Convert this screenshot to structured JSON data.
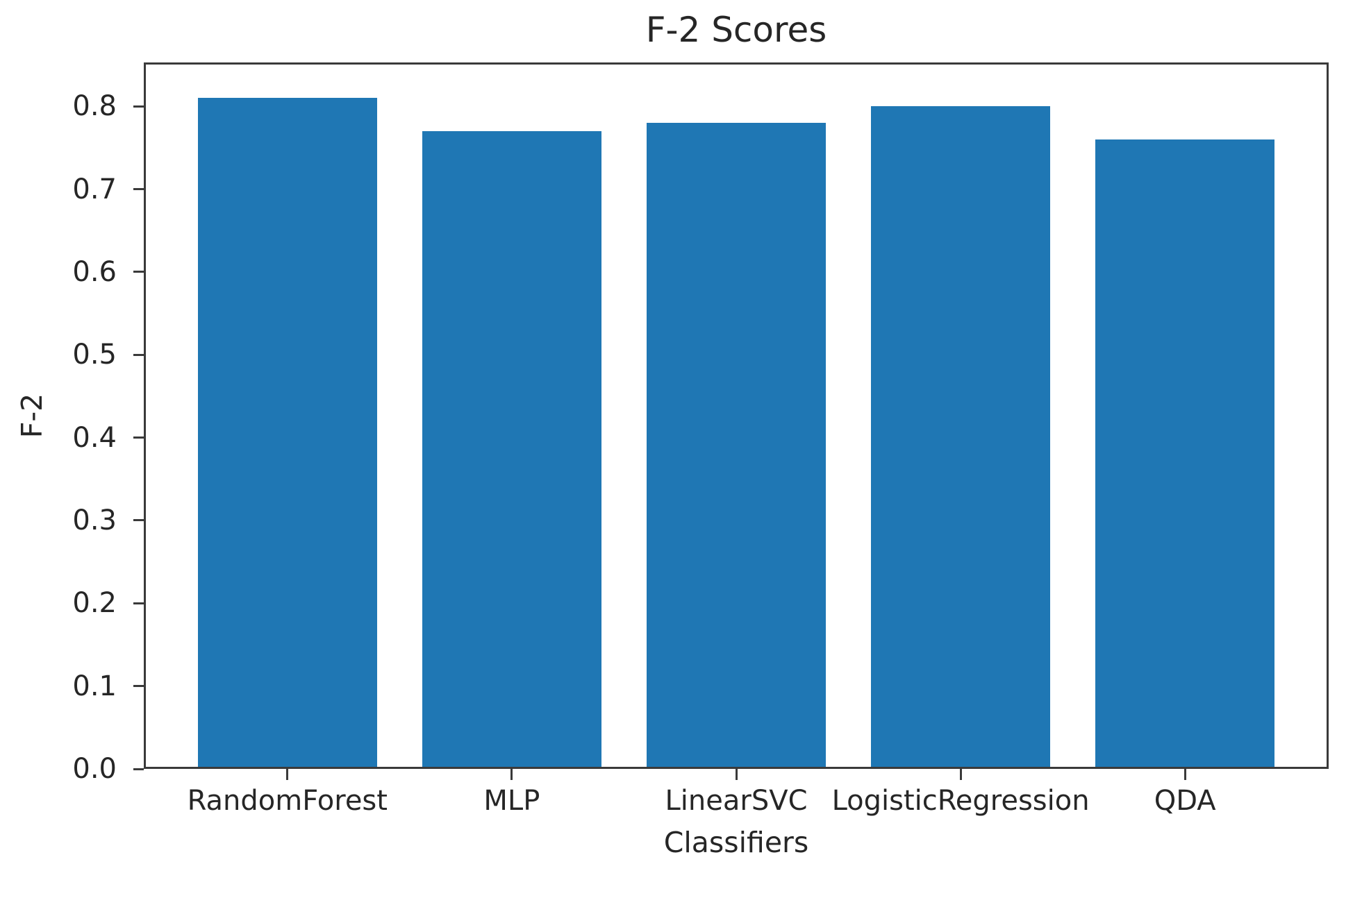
{
  "chart_data": {
    "type": "bar",
    "title": "F-2 Scores",
    "xlabel": "Classifiers",
    "ylabel": "F-2",
    "categories": [
      "RandomForest",
      "MLP",
      "LinearSVC",
      "LogisticRegression",
      "QDA"
    ],
    "values": [
      0.81,
      0.77,
      0.78,
      0.8,
      0.76
    ],
    "ylim": [
      0.0,
      0.853
    ],
    "xlim": [
      -0.64,
      4.64
    ],
    "bar_width": 0.8,
    "yticks": [
      0.0,
      0.1,
      0.2,
      0.3,
      0.4,
      0.5,
      0.6,
      0.7,
      0.8
    ],
    "ytick_labels": [
      "0.0",
      "0.1",
      "0.2",
      "0.3",
      "0.4",
      "0.5",
      "0.6",
      "0.7",
      "0.8"
    ],
    "grid": false,
    "legend": null,
    "colors": {
      "bar": "#1f77b4",
      "spine": "#3a3a3a",
      "text": "#262626",
      "background": "#ffffff"
    }
  }
}
